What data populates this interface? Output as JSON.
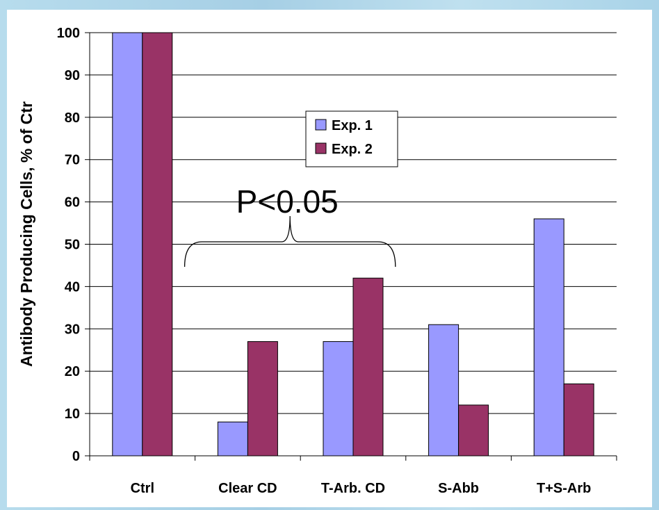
{
  "chart_data": {
    "type": "bar",
    "title": "",
    "xlabel": "",
    "ylabel": "Antibody Producing Cells, % of Ctr",
    "ylim": [
      0,
      100
    ],
    "ytick_step": 10,
    "grid": true,
    "legend_position": "top-center",
    "categories": [
      "Ctrl",
      "Clear CD",
      "T-Arb. CD",
      "S-Abb",
      "T+S-Arb"
    ],
    "series": [
      {
        "name": "Exp. 1",
        "color": "#9999ff",
        "values": [
          100,
          8,
          27,
          31,
          56
        ]
      },
      {
        "name": "Exp. 2",
        "color": "#993366",
        "values": [
          100,
          27,
          42,
          12,
          17
        ]
      }
    ],
    "annotation": {
      "text": "P<0.05",
      "spans_categories": [
        "Clear CD",
        "T-Arb. CD"
      ]
    }
  }
}
